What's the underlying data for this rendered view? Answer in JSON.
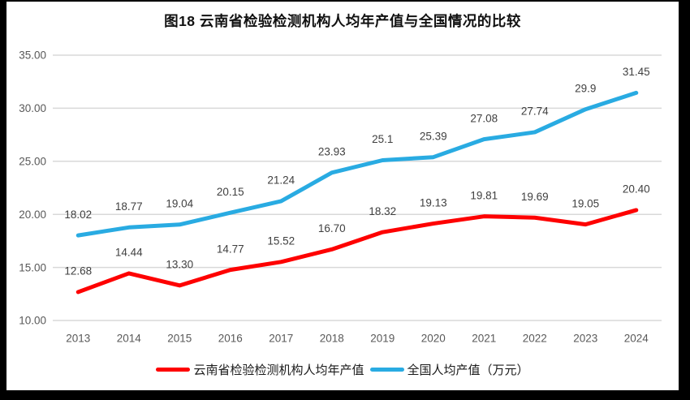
{
  "window": {
    "frame_color": "#000000",
    "canvas_color": "#ffffff"
  },
  "chart_data": {
    "type": "line",
    "title": "图18  云南省检验检测机构人均年产值与全国情况的比较",
    "categories": [
      "2013",
      "2014",
      "2015",
      "2016",
      "2017",
      "2018",
      "2019",
      "2020",
      "2021",
      "2022",
      "2023",
      "2024"
    ],
    "series": [
      {
        "name": "云南省检验检测机构人均年产值",
        "color": "#FE0000",
        "values": [
          12.68,
          14.44,
          13.3,
          14.77,
          15.52,
          16.7,
          18.32,
          19.13,
          19.81,
          19.69,
          19.05,
          20.4
        ],
        "labels": [
          "12.68",
          "14.44",
          "13.30",
          "14.77",
          "15.52",
          "16.70",
          "18.32",
          "19.13",
          "19.81",
          "19.69",
          "19.05",
          "20.40"
        ]
      },
      {
        "name": "全国人均产值（万元）",
        "color": "#29ABE2",
        "values": [
          18.02,
          18.77,
          19.04,
          20.15,
          21.24,
          23.93,
          25.1,
          25.39,
          27.08,
          27.74,
          29.9,
          31.45
        ],
        "labels": [
          "18.02",
          "18.77",
          "19.04",
          "20.15",
          "21.24",
          "23.93",
          "25.1",
          "25.39",
          "27.08",
          "27.74",
          "29.9",
          "31.45"
        ]
      }
    ],
    "xlabel": "",
    "ylabel": "",
    "ylim": [
      10,
      35
    ],
    "yticks": [
      {
        "value": 35,
        "label": "35.00"
      },
      {
        "value": 30,
        "label": "30.00"
      },
      {
        "value": 25,
        "label": "25.00"
      },
      {
        "value": 20,
        "label": "20.00"
      },
      {
        "value": 15,
        "label": "15.00"
      },
      {
        "value": 10,
        "label": "10.00"
      }
    ],
    "grid": true,
    "gridline_color": "#D9D9D9",
    "legend_position": "bottom",
    "line_width": 5
  }
}
